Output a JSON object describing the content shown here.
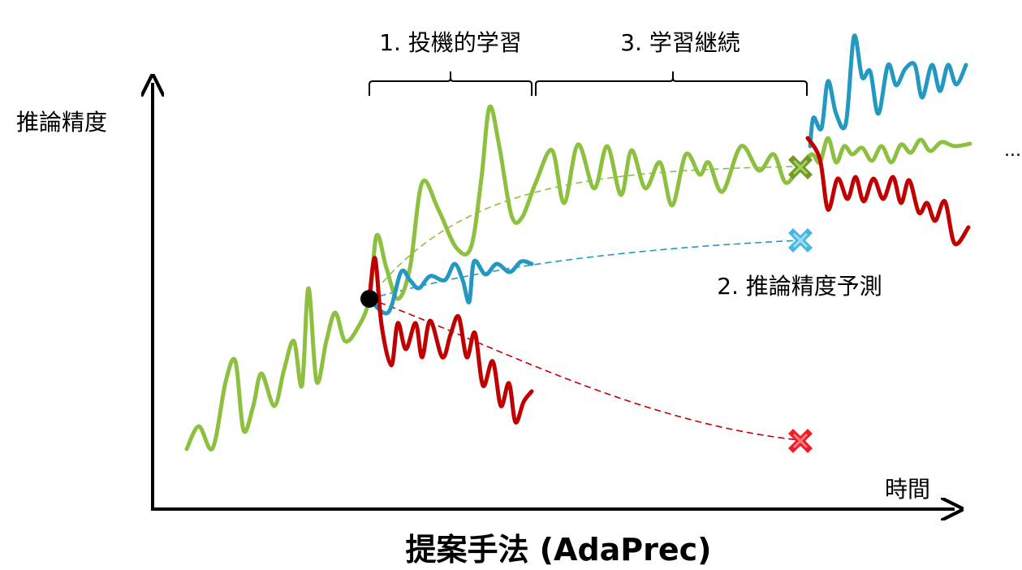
{
  "labels": {
    "y_axis": "推論精度",
    "x_axis": "時間",
    "title": "提案手法 (AdaPrec)",
    "step1": "1. 投機的学習",
    "step2": "2. 推論精度予測",
    "step3": "3. 学習継続",
    "ellipsis": "..."
  },
  "colors": {
    "green": "#8dc03f",
    "blue": "#2399c2",
    "red": "#c00000",
    "green_marker": "#6f9a2a",
    "blue_marker": "#46b6e3",
    "red_marker": "#ee1c24",
    "axis": "#000000"
  },
  "markers": [
    {
      "name": "green-prediction-marker",
      "color": "green_marker"
    },
    {
      "name": "blue-prediction-marker",
      "color": "blue_marker"
    },
    {
      "name": "red-prediction-marker",
      "color": "red_marker"
    }
  ]
}
